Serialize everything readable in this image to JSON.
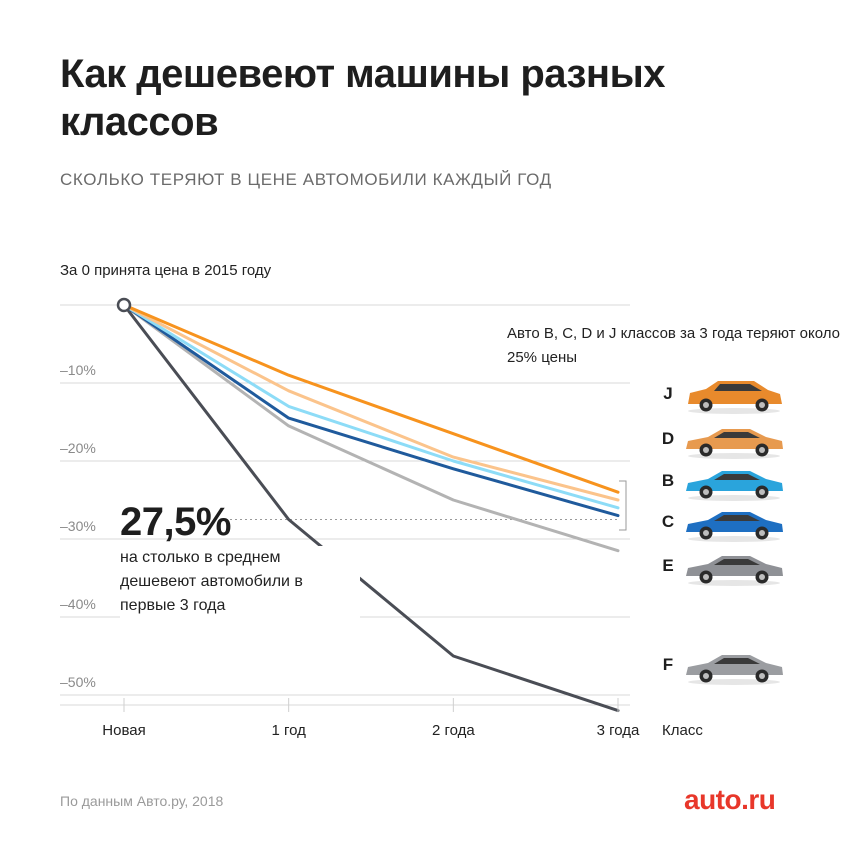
{
  "header": {
    "title": "Как дешевеют машины разных классов",
    "subtitle": "СКОЛЬКО ТЕРЯЮТ В ЦЕНЕ АВТОМОБИЛИ КАЖДЫЙ ГОД"
  },
  "notes": {
    "baseline": "За 0 принята цена в 2015 году",
    "class_group": "Авто B, C, D и J классов за 3 года теряют около 25% цены",
    "class_axis": "Класс"
  },
  "callout": {
    "value": "27,5%",
    "text": "на столько в среднем дешевеют автомобили в первые 3 года"
  },
  "footer": {
    "source": "По данным Авто.ру, 2018",
    "brand": "auto.ru"
  },
  "colors": {
    "J": "#f7931e",
    "D": "#fbc48c",
    "B": "#8ddcf7",
    "C": "#1f5a9c",
    "E": "#b3b3b3",
    "F": "#4a4d55"
  },
  "chart_data": {
    "type": "line",
    "categories": [
      "Новая",
      "1 год",
      "2 года",
      "3 года"
    ],
    "y_tick_labels": [
      "–10%",
      "–20%",
      "–30%",
      "–40%",
      "–50%"
    ],
    "y_ticks": [
      -10,
      -20,
      -30,
      -40,
      -50
    ],
    "ylim": [
      -52,
      0
    ],
    "average_line": -27.5,
    "series": [
      {
        "name": "J",
        "values": [
          0,
          -9,
          -16.5,
          -24
        ]
      },
      {
        "name": "D",
        "values": [
          0,
          -11,
          -19.5,
          -25
        ]
      },
      {
        "name": "B",
        "values": [
          0,
          -13,
          -20,
          -26
        ]
      },
      {
        "name": "C",
        "values": [
          0,
          -14.5,
          -21,
          -27
        ]
      },
      {
        "name": "E",
        "values": [
          0,
          -15.5,
          -25,
          -31.5
        ]
      },
      {
        "name": "F",
        "values": [
          0,
          -27.5,
          -45,
          -52
        ]
      }
    ],
    "class_order": [
      "J",
      "D",
      "B",
      "C",
      "E",
      "F"
    ]
  }
}
